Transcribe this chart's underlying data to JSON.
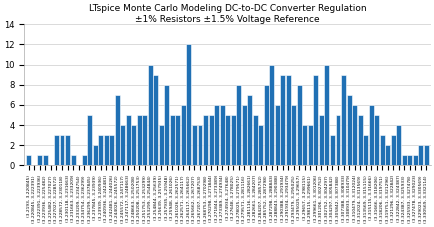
{
  "title_line1": "LTspice Monte Carlo Modeling DC-to-DC Converter Regulation",
  "title_line2": "±1% Resistors ±1.5% Voltage Reference",
  "bar_color": "#2070b4",
  "bar_edge_color": "white",
  "bar_edge_width": 0.4,
  "ylabel_vals": [
    0,
    2,
    4,
    6,
    8,
    10,
    12,
    14
  ],
  "ylim": [
    0,
    14
  ],
  "background_color": "#ffffff",
  "plot_bg_color": "#ffffff",
  "bar_heights": [
    1,
    0,
    1,
    1,
    0,
    3,
    3,
    3,
    1,
    0,
    1,
    5,
    2,
    3,
    3,
    3,
    7,
    4,
    5,
    4,
    5,
    5,
    10,
    9,
    4,
    8,
    5,
    5,
    6,
    12,
    4,
    4,
    5,
    5,
    6,
    6,
    5,
    5,
    8,
    6,
    7,
    5,
    4,
    8,
    10,
    6,
    9,
    9,
    6,
    8,
    4,
    4,
    9,
    5,
    10,
    3,
    5,
    9,
    7,
    6,
    5,
    3,
    6,
    5,
    3,
    2,
    3,
    4,
    1,
    1,
    1,
    2,
    2
  ],
  "title_fontsize": 6.5,
  "tick_fontsize": 3.2,
  "ylabel_fontsize": 6,
  "grid_color": "#cccccc",
  "spine_color": "#aaaaaa"
}
